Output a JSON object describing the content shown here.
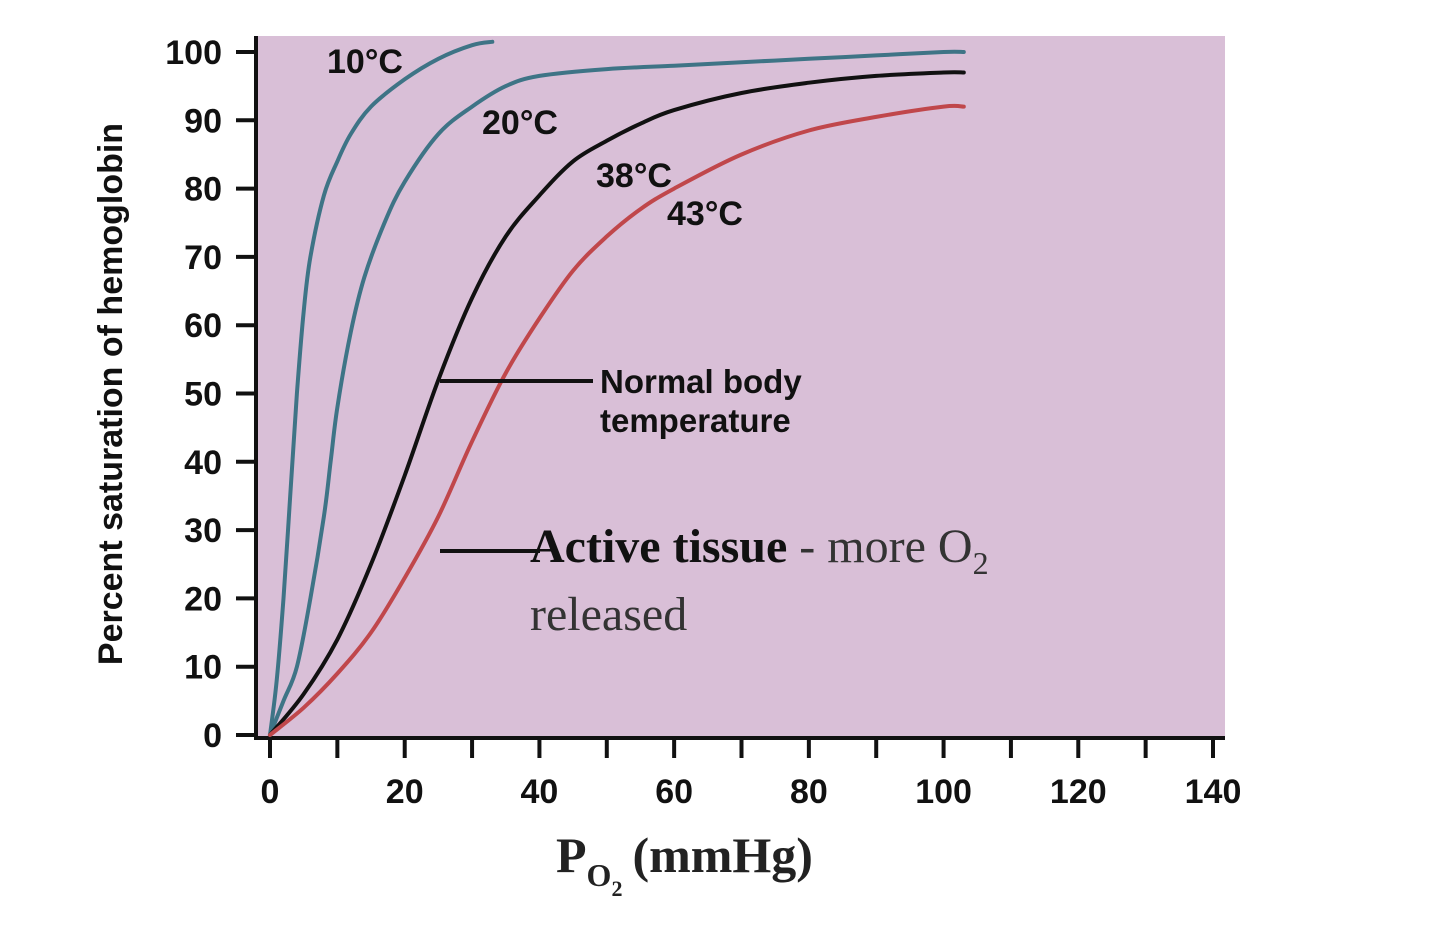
{
  "chart_data": {
    "type": "line",
    "xlabel": {
      "main": "P",
      "sub": "O",
      "subsub": "2",
      "unit": "(mmHg)"
    },
    "ylabel": "Percent saturation of hemoglobin",
    "xlim": [
      0,
      140
    ],
    "ylim": [
      0,
      100
    ],
    "xticks": [
      "0",
      "20",
      "40",
      "60",
      "80",
      "100",
      "120",
      "140"
    ],
    "yticks": [
      "0",
      "10",
      "20",
      "30",
      "40",
      "50",
      "60",
      "70",
      "80",
      "90",
      "100"
    ],
    "grid": false,
    "colors": {
      "plot_bg": "#d9bfd7",
      "teal": "#3e7486",
      "black": "#111111",
      "red": "#c0474b"
    },
    "series": [
      {
        "name": "10°C",
        "color": "#3e7486",
        "x": [
          0,
          1,
          2,
          3,
          4,
          5,
          6,
          8,
          10,
          12,
          15,
          20,
          25,
          30,
          33
        ],
        "y": [
          0,
          8,
          20,
          35,
          50,
          62,
          70,
          79,
          84,
          88,
          92,
          96,
          99,
          101,
          101.5
        ]
      },
      {
        "name": "20°C",
        "color": "#3e7486",
        "x": [
          0,
          2,
          4,
          6,
          8,
          9,
          10,
          12,
          14,
          17,
          20,
          25,
          30,
          35,
          40,
          50,
          60,
          70,
          80,
          90,
          100,
          103
        ],
        "y": [
          0,
          5,
          10,
          20,
          32,
          40,
          48,
          59,
          67,
          75,
          81,
          88,
          92,
          95,
          96.5,
          97.5,
          98,
          98.5,
          99,
          99.5,
          100,
          100
        ]
      },
      {
        "name": "38°C",
        "color": "#111111",
        "x": [
          0,
          5,
          10,
          15,
          20,
          25,
          30,
          35,
          40,
          45,
          50,
          55,
          60,
          70,
          80,
          90,
          100,
          103
        ],
        "y": [
          0,
          6,
          14,
          25,
          38,
          52,
          64,
          73,
          79,
          84,
          87,
          89.5,
          91.5,
          94,
          95.5,
          96.5,
          97,
          97
        ]
      },
      {
        "name": "43°C",
        "color": "#c0474b",
        "x": [
          0,
          5,
          10,
          15,
          20,
          25,
          30,
          35,
          40,
          45,
          50,
          55,
          60,
          70,
          80,
          90,
          100,
          103
        ],
        "y": [
          0,
          4,
          9,
          15,
          23,
          32,
          43,
          53,
          61,
          68,
          73,
          77,
          80,
          85,
          88.5,
          90.5,
          92,
          92
        ]
      }
    ],
    "annotations": [
      {
        "text": "10°C"
      },
      {
        "text": "20°C"
      },
      {
        "text": "38°C"
      },
      {
        "text": "43°C"
      },
      {
        "lines": [
          "Normal body",
          "temperature"
        ]
      },
      {
        "bold": "Active tissue",
        "normal": " - more O",
        "sub": "2",
        "line2": "released"
      }
    ]
  }
}
